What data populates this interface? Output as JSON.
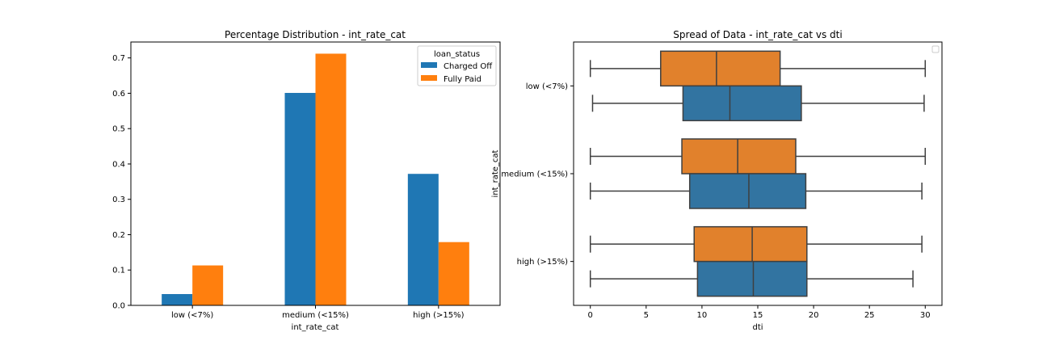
{
  "colors": {
    "charged_off": "#1f77b4",
    "fully_paid": "#ff7f0e",
    "box_blue": "#3274a1",
    "box_orange": "#e1812c",
    "box_edge": "#3f3f3f"
  },
  "chart_data": [
    {
      "type": "bar",
      "title": "Percentage Distribution - int_rate_cat",
      "xlabel": "int_rate_cat",
      "ylabel": "",
      "categories": [
        "low (<7%)",
        "medium (<15%)",
        "high (>15%)"
      ],
      "series": [
        {
          "name": "Charged Off",
          "values": [
            0.032,
            0.601,
            0.372
          ]
        },
        {
          "name": "Fully Paid",
          "values": [
            0.113,
            0.712,
            0.179
          ]
        }
      ],
      "ylim": [
        0,
        0.745
      ],
      "yticks": [
        "0.0",
        "0.1",
        "0.2",
        "0.3",
        "0.4",
        "0.5",
        "0.6",
        "0.7"
      ],
      "legend": {
        "title": "loan_status",
        "placement": "top-right"
      },
      "grid": false
    },
    {
      "type": "box",
      "orientation": "horizontal",
      "title": "Spread of Data - int_rate_cat vs dti",
      "xlabel": "dti",
      "ylabel": "int_rate_cat",
      "categories": [
        "low (<7%)",
        "medium (<15%)",
        "high (>15%)"
      ],
      "xlim": [
        -1.5,
        31.5
      ],
      "xticks": [
        "0",
        "5",
        "10",
        "15",
        "20",
        "25",
        "30"
      ],
      "series": [
        {
          "color": "orange",
          "boxes": [
            {
              "min": 0.0,
              "q1": 6.3,
              "median": 11.3,
              "q3": 17.0,
              "max": 30.0
            },
            {
              "min": 0.0,
              "q1": 8.2,
              "median": 13.2,
              "q3": 18.4,
              "max": 30.0
            },
            {
              "min": 0.0,
              "q1": 9.3,
              "median": 14.5,
              "q3": 19.4,
              "max": 29.7
            }
          ]
        },
        {
          "color": "blue",
          "boxes": [
            {
              "min": 0.2,
              "q1": 8.3,
              "median": 12.5,
              "q3": 18.9,
              "max": 29.9
            },
            {
              "min": 0.0,
              "q1": 8.9,
              "median": 14.2,
              "q3": 19.3,
              "max": 29.7
            },
            {
              "min": 0.0,
              "q1": 9.6,
              "median": 14.6,
              "q3": 19.4,
              "max": 28.9
            }
          ]
        }
      ],
      "legend": {
        "placement": "top-right",
        "entries": []
      },
      "grid": false
    }
  ]
}
